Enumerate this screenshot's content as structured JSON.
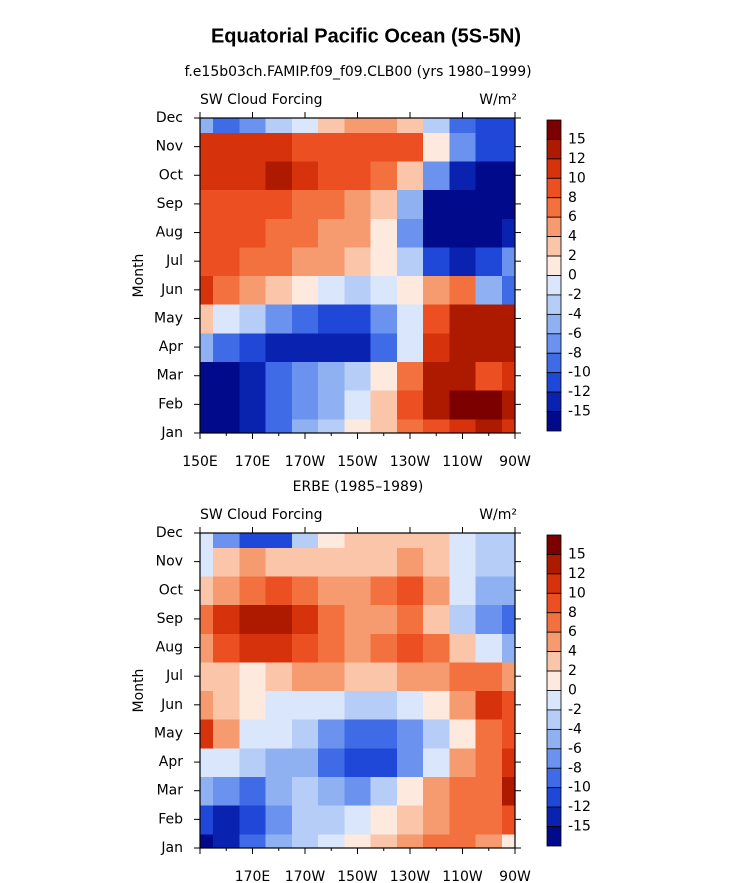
{
  "chart_data": [
    {
      "type": "contour",
      "title": "Equatorial Pacific Ocean (5S-5N)",
      "subtitle": "f.e15b03ch.FAMIP.f09_f09.CLB00 (yrs 1980–1999)",
      "left_label": "SW Cloud Forcing",
      "right_label": "W/m²",
      "ylabel": "Month",
      "categories": [
        "Jan",
        "Feb",
        "Mar",
        "Apr",
        "May",
        "Jun",
        "Jul",
        "Aug",
        "Sep",
        "Oct",
        "Nov",
        "Dec"
      ],
      "x": [
        150,
        160,
        170,
        180,
        190,
        200,
        210,
        220,
        230,
        240,
        250,
        260,
        270
      ],
      "xlim": [
        150,
        270
      ],
      "xticks": [
        {
          "value": 150,
          "label": "150E"
        },
        {
          "value": 170,
          "label": "170E"
        },
        {
          "value": 190,
          "label": "170W"
        },
        {
          "value": 210,
          "label": "150W"
        },
        {
          "value": 230,
          "label": "130W"
        },
        {
          "value": 250,
          "label": "110W"
        },
        {
          "value": 270,
          "label": "90W"
        }
      ],
      "levels": [
        15,
        12,
        10,
        8,
        6,
        4,
        2,
        0,
        -2,
        -4,
        -6,
        -8,
        -10,
        -12,
        -15
      ],
      "colors": [
        "#7d0000",
        "#ae1a00",
        "#d6320c",
        "#ec5022",
        "#f2713f",
        "#f69a70",
        "#fac5a9",
        "#fde9dd",
        "#d9e6fb",
        "#b5cdf7",
        "#8fb1f2",
        "#6a92ee",
        "#3f6ce6",
        "#1f48d8",
        "#0a22b0",
        "#000a8a"
      ],
      "z": [
        [
          -16,
          -16,
          -14,
          -10,
          -6,
          -3,
          0,
          3,
          6,
          8,
          10,
          12,
          10
        ],
        [
          -16,
          -16,
          -14,
          -10,
          -7,
          -5,
          -2,
          2,
          8,
          12,
          15,
          16,
          12
        ],
        [
          -16,
          -16,
          -13,
          -10,
          -8,
          -6,
          -4,
          0,
          6,
          12,
          13,
          8,
          10
        ],
        [
          -6,
          -10,
          -12,
          -13,
          -14,
          -15,
          -15,
          -10,
          -2,
          10,
          13,
          14,
          12
        ],
        [
          2,
          -2,
          -4,
          -8,
          -10,
          -12,
          -12,
          -8,
          -2,
          8,
          12,
          12,
          14
        ],
        [
          10,
          6,
          4,
          2,
          0,
          -2,
          -4,
          -2,
          0,
          4,
          6,
          -6,
          -10
        ],
        [
          8,
          8,
          7,
          6,
          5,
          4,
          2,
          0,
          -4,
          -12,
          -14,
          -12,
          -8
        ],
        [
          8,
          8,
          8,
          7,
          6,
          5,
          4,
          0,
          -8,
          -16,
          -16,
          -16,
          -14
        ],
        [
          9,
          8,
          8,
          8,
          7,
          6,
          5,
          2,
          -6,
          -16,
          -16,
          -16,
          -16
        ],
        [
          10,
          11,
          11,
          12,
          10,
          9,
          8,
          6,
          2,
          -8,
          -14,
          -16,
          -16
        ],
        [
          10,
          10,
          10,
          10,
          9,
          8,
          8,
          8,
          8,
          0,
          -8,
          -12,
          -12
        ],
        [
          -6,
          -10,
          -8,
          -4,
          -2,
          2,
          4,
          4,
          2,
          -4,
          -10,
          -12,
          -12
        ]
      ]
    },
    {
      "type": "contour",
      "subtitle": "ERBE (1985–1989)",
      "left_label": "SW Cloud Forcing",
      "right_label": "W/m²",
      "ylabel": "Month",
      "categories": [
        "Jan",
        "Feb",
        "Mar",
        "Apr",
        "May",
        "Jun",
        "Jul",
        "Aug",
        "Sep",
        "Oct",
        "Nov",
        "Dec"
      ],
      "x": [
        150,
        160,
        170,
        180,
        190,
        200,
        210,
        220,
        230,
        240,
        250,
        260,
        270
      ],
      "xlim": [
        150,
        270
      ],
      "xticks": [
        {
          "value": 150,
          "label": ""
        },
        {
          "value": 170,
          "label": "170E"
        },
        {
          "value": 190,
          "label": "170W"
        },
        {
          "value": 210,
          "label": "150W"
        },
        {
          "value": 230,
          "label": "130W"
        },
        {
          "value": 250,
          "label": "110W"
        },
        {
          "value": 270,
          "label": "90W"
        }
      ],
      "levels": [
        15,
        12,
        10,
        8,
        6,
        4,
        2,
        0,
        -2,
        -4,
        -6,
        -8,
        -10,
        -12,
        -15
      ],
      "colors": [
        "#7d0000",
        "#ae1a00",
        "#d6320c",
        "#ec5022",
        "#f2713f",
        "#f69a70",
        "#fac5a9",
        "#fde9dd",
        "#d9e6fb",
        "#b5cdf7",
        "#8fb1f2",
        "#6a92ee",
        "#3f6ce6",
        "#1f48d8",
        "#0a22b0",
        "#000a8a"
      ],
      "z": [
        [
          -16,
          -14,
          -10,
          -6,
          -4,
          -2,
          0,
          2,
          4,
          6,
          6,
          4,
          0
        ],
        [
          -12,
          -14,
          -12,
          -8,
          -4,
          -4,
          -2,
          0,
          2,
          4,
          6,
          6,
          8
        ],
        [
          -6,
          -8,
          -10,
          -6,
          -4,
          -6,
          -8,
          -4,
          0,
          4,
          6,
          6,
          12
        ],
        [
          -2,
          -2,
          -4,
          -6,
          -6,
          -10,
          -12,
          -12,
          -8,
          -2,
          4,
          6,
          10
        ],
        [
          10,
          4,
          -2,
          -2,
          -4,
          -8,
          -10,
          -10,
          -8,
          -4,
          0,
          6,
          8
        ],
        [
          4,
          2,
          0,
          -2,
          -2,
          -2,
          -4,
          -4,
          -2,
          0,
          4,
          10,
          8
        ],
        [
          2,
          2,
          0,
          2,
          4,
          4,
          2,
          2,
          4,
          4,
          6,
          6,
          4
        ],
        [
          4,
          8,
          10,
          10,
          8,
          6,
          4,
          6,
          8,
          6,
          2,
          -2,
          -6
        ],
        [
          6,
          10,
          12,
          12,
          10,
          6,
          4,
          4,
          6,
          2,
          -4,
          -8,
          -10
        ],
        [
          2,
          4,
          6,
          8,
          6,
          4,
          4,
          6,
          8,
          4,
          -2,
          -6,
          -6
        ],
        [
          -2,
          2,
          4,
          2,
          2,
          2,
          2,
          2,
          4,
          2,
          -2,
          -4,
          -4
        ],
        [
          -2,
          -8,
          -12,
          -12,
          -4,
          0,
          2,
          2,
          2,
          2,
          -2,
          -4,
          -4
        ]
      ]
    }
  ]
}
